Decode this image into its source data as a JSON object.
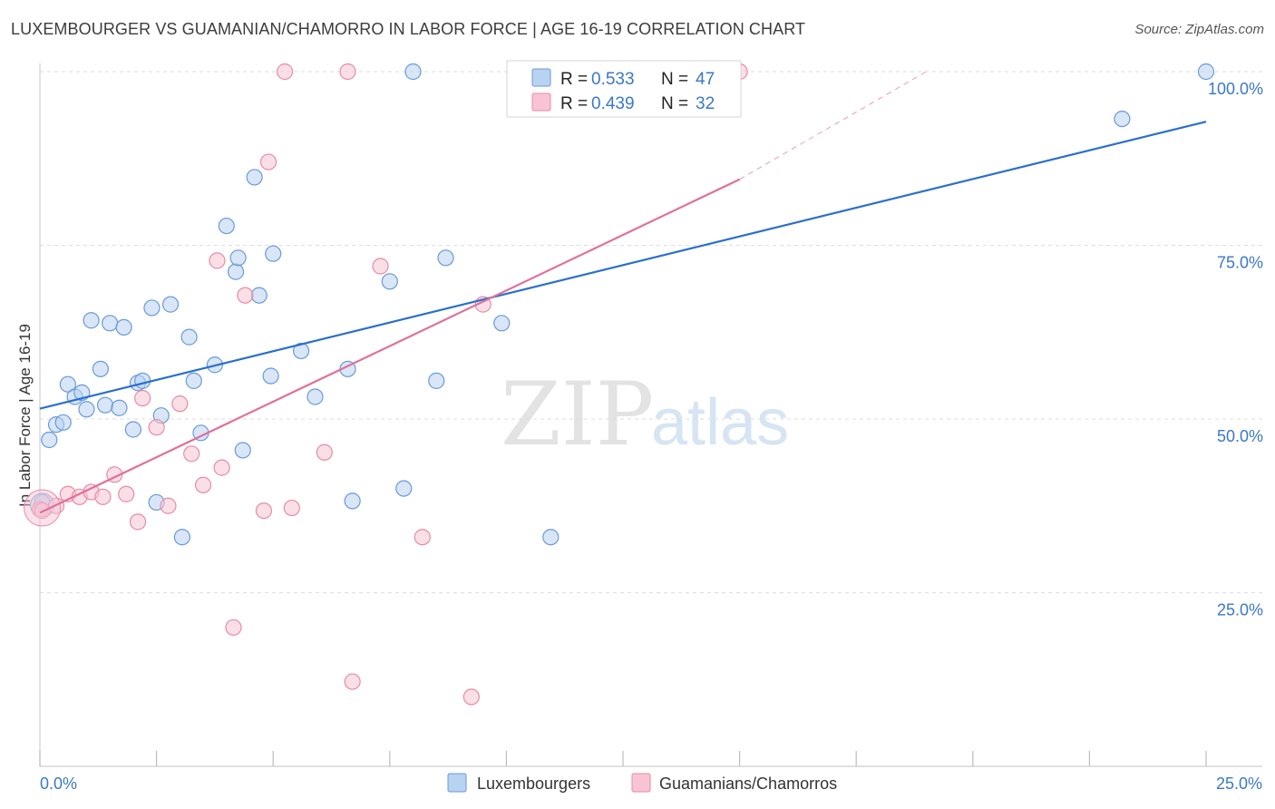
{
  "header": {
    "title": "LUXEMBOURGER VS GUAMANIAN/CHAMORRO IN LABOR FORCE | AGE 16-19 CORRELATION CHART",
    "source": "Source: ZipAtlas.com"
  },
  "watermark": {
    "zip": "ZIP",
    "atlas": "atlas"
  },
  "colors": {
    "blue_fill": "#b8d2f2",
    "blue_stroke": "#6a9ad8",
    "blue_line": "#2a6fcc",
    "pink_fill": "#f8c4d4",
    "pink_stroke": "#e88aa8",
    "pink_line": "#e0709a",
    "tick_text": "#3a78c8"
  },
  "legend": {
    "series": [
      {
        "r_label": "R =",
        "r_value": "0.533",
        "n_label": "N =",
        "n_value": "47"
      },
      {
        "r_label": "R =",
        "r_value": "0.439",
        "n_label": "N =",
        "n_value": "32"
      }
    ]
  },
  "bottom_legend": {
    "luxembourgers": "Luxembourgers",
    "guamanians": "Guamanians/Chamorros"
  },
  "chart_data": {
    "type": "scatter",
    "title": "LUXEMBOURGER VS GUAMANIAN/CHAMORRO IN LABOR FORCE | AGE 16-19 CORRELATION CHART",
    "xlabel": "",
    "ylabel": "In Labor Force | Age 16-19",
    "xlim": [
      0,
      25
    ],
    "ylim": [
      0,
      100
    ],
    "x_tick_labels": [
      "0.0%",
      "25.0%"
    ],
    "y_tick_labels": [
      "25.0%",
      "50.0%",
      "75.0%",
      "100.0%"
    ],
    "y_ticks": [
      25,
      50,
      75,
      100
    ],
    "series": [
      {
        "name": "Luxembourgers",
        "R": 0.533,
        "N": 47,
        "trend": {
          "x": [
            0,
            25
          ],
          "y": [
            51.5,
            92.8
          ]
        },
        "points": [
          {
            "x": 0.05,
            "y": 38.0
          },
          {
            "x": 0.2,
            "y": 47.0
          },
          {
            "x": 0.35,
            "y": 49.2
          },
          {
            "x": 0.5,
            "y": 49.5
          },
          {
            "x": 0.6,
            "y": 55.0
          },
          {
            "x": 0.75,
            "y": 53.2
          },
          {
            "x": 0.9,
            "y": 53.8
          },
          {
            "x": 1.0,
            "y": 51.4
          },
          {
            "x": 1.1,
            "y": 64.2
          },
          {
            "x": 1.3,
            "y": 57.2
          },
          {
            "x": 1.4,
            "y": 52.0
          },
          {
            "x": 1.5,
            "y": 63.8
          },
          {
            "x": 1.7,
            "y": 51.6
          },
          {
            "x": 1.8,
            "y": 63.2
          },
          {
            "x": 2.0,
            "y": 48.5
          },
          {
            "x": 2.1,
            "y": 55.2
          },
          {
            "x": 2.2,
            "y": 55.5
          },
          {
            "x": 2.4,
            "y": 66.0
          },
          {
            "x": 2.5,
            "y": 38.0
          },
          {
            "x": 2.6,
            "y": 50.5
          },
          {
            "x": 2.8,
            "y": 66.5
          },
          {
            "x": 3.05,
            "y": 33.0
          },
          {
            "x": 3.2,
            "y": 61.8
          },
          {
            "x": 3.3,
            "y": 55.5
          },
          {
            "x": 3.45,
            "y": 48.0
          },
          {
            "x": 3.75,
            "y": 57.8
          },
          {
            "x": 4.0,
            "y": 77.8
          },
          {
            "x": 4.2,
            "y": 71.2
          },
          {
            "x": 4.25,
            "y": 73.2
          },
          {
            "x": 4.35,
            "y": 45.5
          },
          {
            "x": 4.6,
            "y": 84.8
          },
          {
            "x": 4.7,
            "y": 67.8
          },
          {
            "x": 4.95,
            "y": 56.2
          },
          {
            "x": 5.0,
            "y": 73.8
          },
          {
            "x": 5.6,
            "y": 59.8
          },
          {
            "x": 5.9,
            "y": 53.2
          },
          {
            "x": 6.6,
            "y": 57.2
          },
          {
            "x": 6.7,
            "y": 38.2
          },
          {
            "x": 7.5,
            "y": 69.8
          },
          {
            "x": 7.8,
            "y": 40.0
          },
          {
            "x": 8.0,
            "y": 100.0
          },
          {
            "x": 8.5,
            "y": 55.5
          },
          {
            "x": 8.7,
            "y": 73.2
          },
          {
            "x": 9.9,
            "y": 63.8
          },
          {
            "x": 10.95,
            "y": 33.0
          },
          {
            "x": 23.2,
            "y": 93.2
          },
          {
            "x": 25.0,
            "y": 100.0
          }
        ]
      },
      {
        "name": "Guamanians/Chamorros",
        "R": 0.439,
        "N": 32,
        "trend": {
          "x": [
            0,
            15.0
          ],
          "y": [
            36.5,
            84.5
          ]
        },
        "trend_dashed": {
          "x": [
            15.0,
            19.0
          ],
          "y": [
            84.5,
            100
          ]
        },
        "points": [
          {
            "x": 0.0,
            "y": 37.0
          },
          {
            "x": 0.35,
            "y": 37.5
          },
          {
            "x": 0.6,
            "y": 39.2
          },
          {
            "x": 0.85,
            "y": 38.8
          },
          {
            "x": 1.1,
            "y": 39.5
          },
          {
            "x": 1.35,
            "y": 38.8
          },
          {
            "x": 1.6,
            "y": 42.0
          },
          {
            "x": 1.85,
            "y": 39.2
          },
          {
            "x": 2.1,
            "y": 35.2
          },
          {
            "x": 2.2,
            "y": 53.0
          },
          {
            "x": 2.5,
            "y": 48.8
          },
          {
            "x": 2.75,
            "y": 37.5
          },
          {
            "x": 3.0,
            "y": 52.2
          },
          {
            "x": 3.25,
            "y": 45.0
          },
          {
            "x": 3.5,
            "y": 40.5
          },
          {
            "x": 3.8,
            "y": 72.8
          },
          {
            "x": 3.9,
            "y": 43.0
          },
          {
            "x": 4.15,
            "y": 20.0
          },
          {
            "x": 4.4,
            "y": 67.8
          },
          {
            "x": 4.8,
            "y": 36.8
          },
          {
            "x": 4.9,
            "y": 87.0
          },
          {
            "x": 5.25,
            "y": 100.0
          },
          {
            "x": 5.4,
            "y": 37.2
          },
          {
            "x": 6.1,
            "y": 45.2
          },
          {
            "x": 6.6,
            "y": 100.0
          },
          {
            "x": 6.7,
            "y": 12.2
          },
          {
            "x": 7.3,
            "y": 72.0
          },
          {
            "x": 8.2,
            "y": 33.0
          },
          {
            "x": 9.25,
            "y": 10.0
          },
          {
            "x": 9.5,
            "y": 66.5
          },
          {
            "x": 15.0,
            "y": 100.0
          },
          {
            "x": 0.05,
            "y": 36.8
          }
        ]
      }
    ]
  }
}
